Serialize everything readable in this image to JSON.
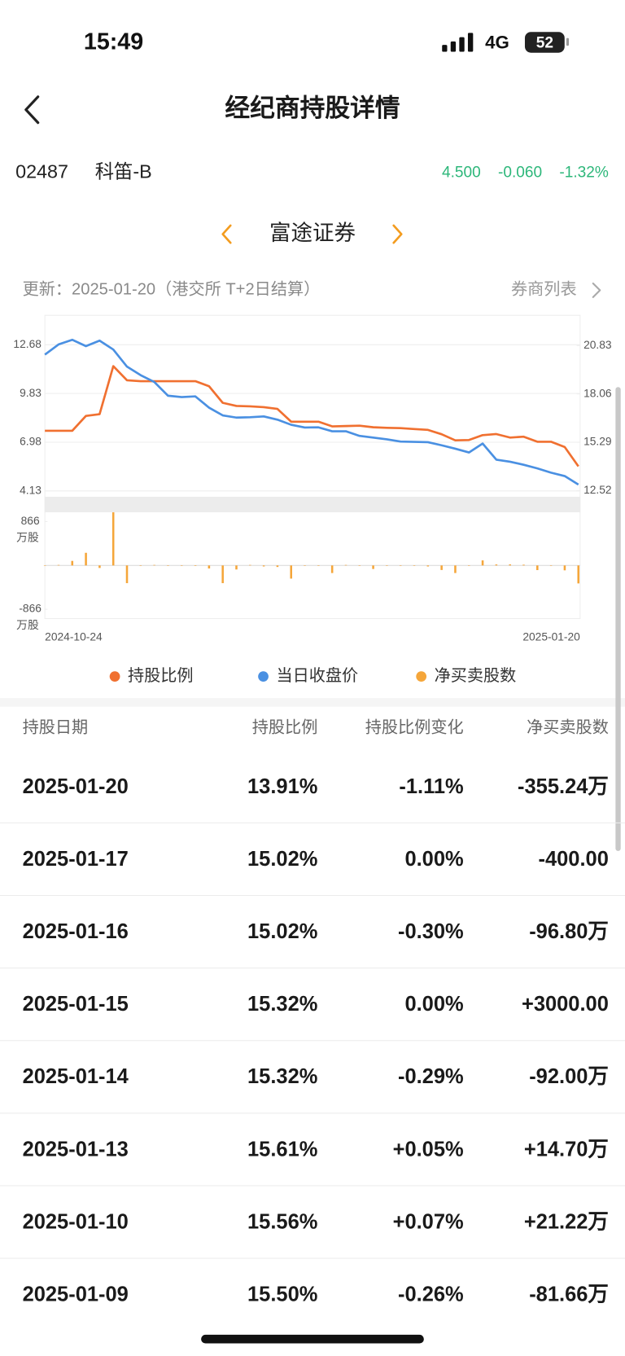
{
  "status_bar": {
    "time": "15:49",
    "network": "4G",
    "battery": "52"
  },
  "header": {
    "title": "经纪商持股详情"
  },
  "stock": {
    "code": "02487",
    "name": "科笛-B",
    "price": "4.500",
    "change": "-0.060",
    "change_pct": "-1.32%"
  },
  "broker": {
    "name": "富途证券"
  },
  "update": {
    "text": "更新：2025-01-20（港交所 T+2日结算）",
    "broker_list": "券商列表"
  },
  "chart_data": {
    "type": "line",
    "categories": [
      "2024-10-24",
      null,
      null,
      null,
      null,
      null,
      null,
      null,
      null,
      null,
      null,
      null,
      null,
      null,
      null,
      null,
      null,
      null,
      null,
      null,
      null,
      null,
      null,
      null,
      null,
      null,
      null,
      null,
      null,
      null,
      null,
      null,
      null,
      null,
      null,
      null,
      null,
      null,
      null,
      "2025-01-20"
    ],
    "ylim": [
      3.79,
      14.4
    ],
    "yticks": [
      12.68,
      9.83,
      6.98,
      4.13
    ],
    "y2lim": [
      12.17,
      22.56
    ],
    "y2ticks": [
      20.83,
      18.06,
      15.29,
      12.52
    ],
    "bar_ylim": [
      -1050,
      1050
    ],
    "bar_yticks": [
      866,
      -866
    ],
    "bar_unit": "万股",
    "grid": true,
    "series": [
      {
        "name": "持股比例",
        "color": "#f07030",
        "axis": "y2",
        "values": [
          15.95,
          15.95,
          15.95,
          16.8,
          16.9,
          19.65,
          18.84,
          18.79,
          18.79,
          18.79,
          18.79,
          18.79,
          18.5,
          17.55,
          17.37,
          17.35,
          17.3,
          17.2,
          16.47,
          16.47,
          16.47,
          16.2,
          16.22,
          16.24,
          16.15,
          16.12,
          16.1,
          16.05,
          16.0,
          15.75,
          15.4,
          15.42,
          15.7,
          15.76,
          15.56,
          15.61,
          15.32,
          15.32,
          15.02,
          13.91
        ]
      },
      {
        "name": "当日收盘价",
        "color": "#4a90e2",
        "values": [
          12.1,
          12.7,
          12.97,
          12.6,
          12.92,
          12.4,
          11.4,
          10.9,
          10.5,
          9.7,
          9.62,
          9.66,
          9.0,
          8.55,
          8.42,
          8.44,
          8.49,
          8.3,
          8.0,
          7.84,
          7.85,
          7.62,
          7.62,
          7.35,
          7.25,
          7.15,
          7.02,
          7.0,
          6.98,
          6.8,
          6.6,
          6.38,
          6.9,
          5.96,
          5.84,
          5.66,
          5.45,
          5.2,
          5.0,
          4.5
        ]
      },
      {
        "name": "净买卖股数",
        "color": "#f5a63a",
        "type": "bar",
        "axis": "bar",
        "values": [
          0,
          10,
          90,
          250,
          -50,
          1050,
          -350,
          0,
          10,
          0,
          0,
          -10,
          -60,
          -350,
          -80,
          10,
          -20,
          -30,
          -260,
          0,
          0,
          -150,
          10,
          0,
          -70,
          0,
          0,
          0,
          -20,
          -90,
          -150,
          0,
          100,
          20,
          21.22,
          14.7,
          -92,
          0.3,
          -96.8,
          -355.24
        ]
      }
    ]
  },
  "table": {
    "columns": [
      "持股日期",
      "持股比例",
      "持股比例变化",
      "净买卖股数"
    ],
    "rows": [
      [
        "2025-01-20",
        "13.91%",
        "-1.11%",
        "-355.24万"
      ],
      [
        "2025-01-17",
        "15.02%",
        "0.00%",
        "-400.00"
      ],
      [
        "2025-01-16",
        "15.02%",
        "-0.30%",
        "-96.80万"
      ],
      [
        "2025-01-15",
        "15.32%",
        "0.00%",
        "+3000.00"
      ],
      [
        "2025-01-14",
        "15.32%",
        "-0.29%",
        "-92.00万"
      ],
      [
        "2025-01-13",
        "15.61%",
        "+0.05%",
        "+14.70万"
      ],
      [
        "2025-01-10",
        "15.56%",
        "+0.07%",
        "+21.22万"
      ],
      [
        "2025-01-09",
        "15.50%",
        "-0.26%",
        "-81.66万"
      ]
    ]
  }
}
